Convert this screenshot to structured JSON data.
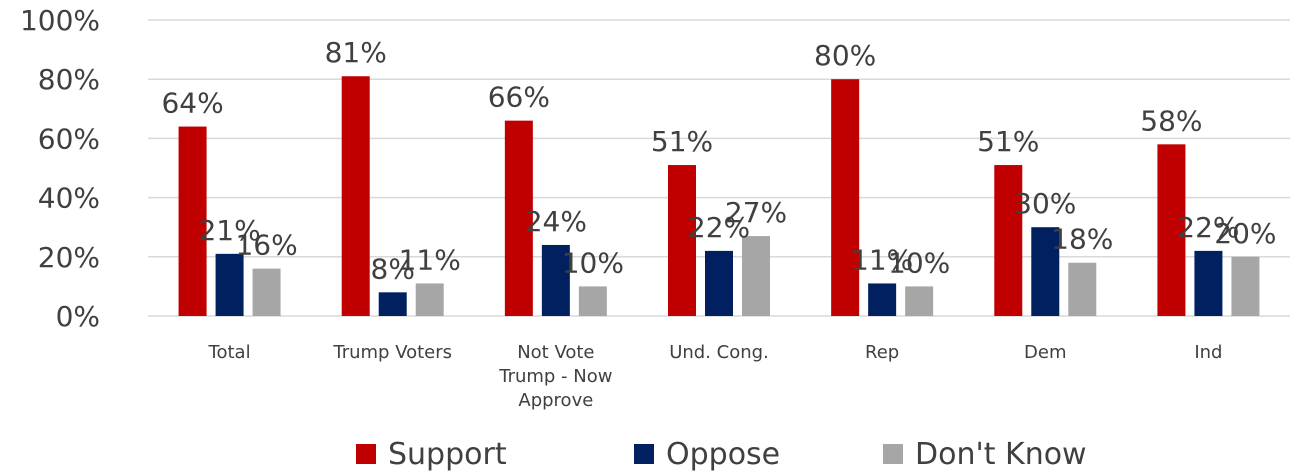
{
  "chart_data": {
    "type": "bar",
    "categories": [
      [
        "Total"
      ],
      [
        "Trump Voters"
      ],
      [
        "Not Vote",
        "Trump - Now",
        "Approve"
      ],
      [
        "Und. Cong."
      ],
      [
        "Rep"
      ],
      [
        "Dem"
      ],
      [
        "Ind"
      ]
    ],
    "series": [
      {
        "name": "Support",
        "color": "#c00000",
        "values": [
          64,
          81,
          66,
          51,
          80,
          51,
          58
        ]
      },
      {
        "name": "Oppose",
        "color": "#002060",
        "values": [
          21,
          8,
          24,
          22,
          11,
          30,
          22
        ]
      },
      {
        "name": "Don't Know",
        "color": "#a6a6a6",
        "values": [
          16,
          11,
          10,
          27,
          10,
          18,
          20
        ]
      }
    ],
    "value_suffix": "%",
    "ylim": [
      0,
      100
    ],
    "yticks": [
      "0%",
      "20%",
      "40%",
      "60%",
      "80%",
      "100%"
    ],
    "grid": true,
    "legend_position": "bottom"
  }
}
